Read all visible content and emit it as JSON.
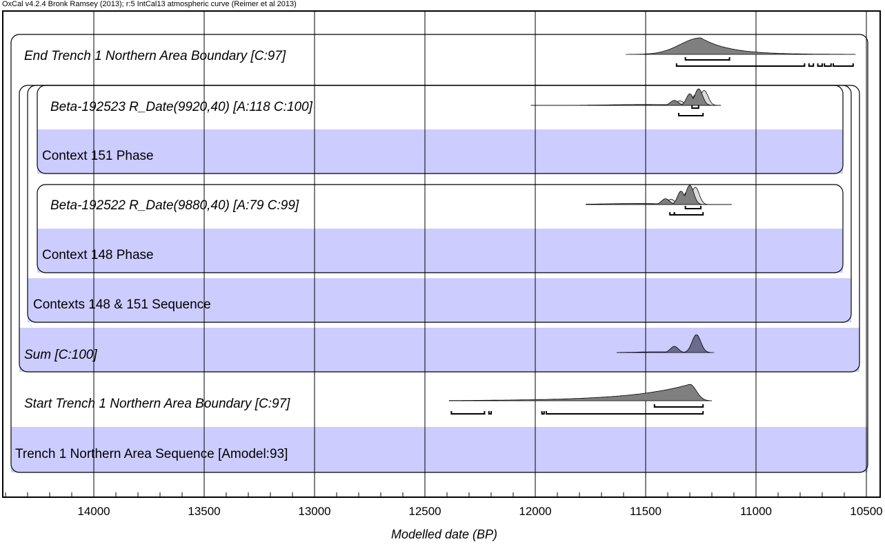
{
  "header": "OxCal v4.2.4 Bronk Ramsey (2013); r:5 IntCal13 atmospheric curve (Reimer et al 2013)",
  "chart_data": {
    "type": "ridgeline",
    "title": "",
    "xlabel": "Modelled date (BP)",
    "x_reversed": true,
    "xlim": [
      14420,
      10460
    ],
    "major_ticks": [
      14000,
      13500,
      13000,
      12500,
      12000,
      11500,
      11000,
      10500
    ],
    "tick_labels": [
      "14000",
      "13500",
      "13000",
      "12500",
      "12000",
      "11500",
      "11000",
      "10500"
    ],
    "minor_tick_step": 100,
    "colors": {
      "band": "#ccccff",
      "posterior": "#7f7f7f",
      "sum": "#6b6b8e",
      "prior": "#dcdcdc"
    },
    "rows": [
      {
        "label": "End Trench 1 Northern Area Boundary [C:97]",
        "italic": true,
        "band": false,
        "dist": {
          "start": 11590,
          "end": 10550,
          "peak": 11250,
          "ramp": 0.25,
          "kind": "boundary-end"
        },
        "range_68": [
          [
            11320,
            11120
          ]
        ],
        "range_95": [
          [
            11360,
            10780
          ],
          [
            10760,
            10740
          ],
          [
            10720,
            10700
          ],
          [
            10690,
            10660
          ],
          [
            10650,
            10560
          ]
        ]
      },
      {
        "label": "Beta-192523 R_Date(9920,40) [A:118 C:100]",
        "italic": true,
        "band": false,
        "dist": {
          "start": 12020,
          "end": 11160,
          "peak": 11260,
          "kind": "date"
        },
        "range_68": [
          [
            11290,
            11260
          ]
        ],
        "range_95": [
          [
            11350,
            11240
          ]
        ]
      },
      {
        "label": "Context 151 Phase",
        "italic": false,
        "band": true
      },
      {
        "label": "Beta-192522 R_Date(9880,40) [A:79 C:99]",
        "italic": true,
        "band": false,
        "dist": {
          "start": 11770,
          "end": 11110,
          "peak": 11300,
          "kind": "date"
        },
        "range_68": [
          [
            11320,
            11250
          ]
        ],
        "range_95": [
          [
            11390,
            11370
          ],
          [
            11370,
            11240
          ]
        ]
      },
      {
        "label": "Context 148 Phase",
        "italic": false,
        "band": true
      },
      {
        "label": "Contexts 148 & 151 Sequence",
        "italic": false,
        "band": true
      },
      {
        "label": "Sum [C:100]",
        "italic": true,
        "band": true,
        "dist": {
          "start": 11630,
          "end": 11190,
          "peak": 11270,
          "kind": "sum"
        },
        "range_68": [],
        "range_95": []
      },
      {
        "label": "Start Trench 1 Northern Area Boundary [C:97]",
        "italic": true,
        "band": false,
        "dist": {
          "start": 12390,
          "end": 11200,
          "peak": 11300,
          "ramp": 0.35,
          "kind": "boundary-start"
        },
        "range_68": [
          [
            11460,
            11240
          ]
        ],
        "range_95": [
          [
            12380,
            12230
          ],
          [
            12210,
            12200
          ],
          [
            11970,
            11960
          ],
          [
            11950,
            11240
          ]
        ]
      },
      {
        "label": "Trench 1 Northern Area Sequence [Amodel:93]",
        "italic": false,
        "band": true
      }
    ]
  }
}
